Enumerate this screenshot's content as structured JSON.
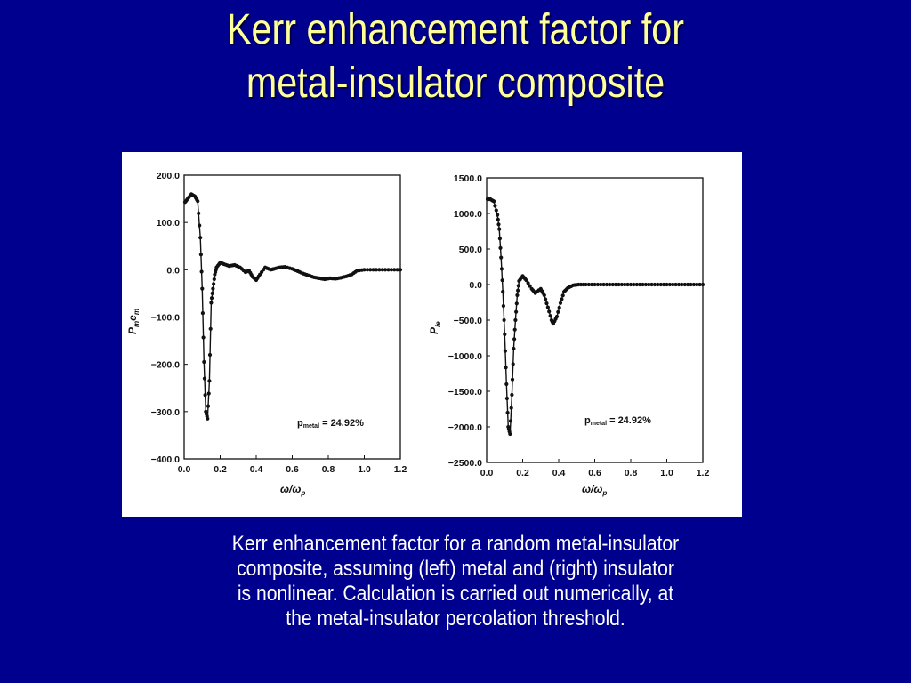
{
  "slide": {
    "title_lines": [
      "Kerr enhancement factor for",
      "metal-insulator composite"
    ],
    "caption_lines": [
      "Kerr enhancement factor for a random metal-insulator",
      "composite, assuming (left) metal and (right) insulator",
      "is nonlinear.  Calculation is  carried out numerically, at",
      "the metal-insulator percolation threshold."
    ]
  },
  "chart_data": [
    {
      "type": "line",
      "xlabel": "ω/ω",
      "xlabel_sub": "p",
      "ylabel": "P",
      "ylabel_sub": "m",
      "ylabel_sub2": "e",
      "ylabel_sub3": "m",
      "xlim": [
        0.0,
        1.2
      ],
      "ylim": [
        -400.0,
        200.0
      ],
      "x_ticks": [
        "0.0",
        "0.2",
        "0.4",
        "0.6",
        "0.8",
        "1.0",
        "1.2"
      ],
      "y_ticks": [
        "200.0",
        "100.0",
        "0.0",
        "−100.0",
        "−200.0",
        "−300.0",
        "−400.0"
      ],
      "annotation": {
        "label": "p",
        "label_sub": "metal",
        "text": " =  24.92%"
      },
      "series": [
        {
          "markers": true,
          "x": [
            0.005,
            0.02,
            0.04,
            0.06,
            0.075,
            0.09,
            0.1,
            0.11,
            0.12,
            0.13,
            0.14,
            0.15,
            0.16,
            0.17,
            0.18,
            0.2,
            0.22,
            0.25,
            0.28,
            0.31,
            0.34,
            0.36,
            0.38,
            0.4,
            0.42,
            0.45,
            0.48,
            0.5,
            0.53,
            0.56,
            0.6,
            0.63,
            0.66,
            0.69,
            0.72,
            0.75,
            0.78,
            0.81,
            0.84,
            0.87,
            0.9,
            0.93,
            0.96,
            1.0,
            1.05,
            1.1,
            1.15,
            1.2
          ],
          "y": [
            143,
            150,
            160,
            155,
            145,
            68,
            -40,
            -195,
            -300,
            -315,
            -235,
            -70,
            -40,
            -10,
            5,
            15,
            12,
            8,
            10,
            5,
            -5,
            -2,
            -15,
            -22,
            -10,
            5,
            0,
            2,
            5,
            6,
            2,
            -3,
            -8,
            -12,
            -16,
            -18,
            -20,
            -18,
            -19,
            -17,
            -14,
            -10,
            -2,
            0,
            0,
            0,
            0,
            0
          ]
        }
      ]
    },
    {
      "type": "line",
      "xlabel": "ω/ω",
      "xlabel_sub": "p",
      "ylabel": "P",
      "ylabel_sub": "ie",
      "xlim": [
        0.0,
        1.2
      ],
      "ylim": [
        -2500.0,
        1500.0
      ],
      "x_ticks": [
        "0.0",
        "0.2",
        "0.4",
        "0.6",
        "0.8",
        "1.0",
        "1.2"
      ],
      "y_ticks": [
        "1500.0",
        "1000.0",
        "500.0",
        "0.0",
        "−500.0",
        "−1000.0",
        "−1500.0",
        "−2000.0",
        "−2500.0"
      ],
      "annotation": {
        "label": "p",
        "label_sub": "metal",
        "text": " =  24.92%"
      },
      "series": [
        {
          "markers": true,
          "x": [
            0.005,
            0.02,
            0.04,
            0.06,
            0.07,
            0.08,
            0.09,
            0.1,
            0.11,
            0.12,
            0.13,
            0.14,
            0.15,
            0.16,
            0.17,
            0.18,
            0.2,
            0.22,
            0.25,
            0.27,
            0.3,
            0.32,
            0.34,
            0.36,
            0.37,
            0.39,
            0.41,
            0.43,
            0.45,
            0.48,
            0.51,
            0.55,
            0.6,
            0.65,
            0.7,
            0.75,
            0.8,
            0.85,
            0.9,
            0.95,
            1.0,
            1.05,
            1.1,
            1.15,
            1.2
          ],
          "y": [
            1200,
            1200,
            1170,
            980,
            780,
            380,
            -100,
            -700,
            -1400,
            -2000,
            -2100,
            -1550,
            -900,
            -500,
            -150,
            50,
            120,
            60,
            -60,
            -120,
            -60,
            -150,
            -320,
            -500,
            -550,
            -450,
            -260,
            -100,
            -50,
            -10,
            0,
            0,
            0,
            0,
            0,
            0,
            0,
            0,
            0,
            0,
            0,
            0,
            0,
            0,
            0
          ]
        }
      ]
    }
  ]
}
